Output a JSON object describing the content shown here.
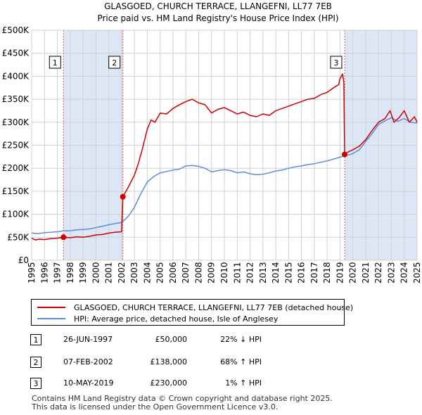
{
  "chart_data": {
    "type": "line",
    "title": "GLASGOED, CHURCH TERRACE, LLANGEFNI, LL77 7EB",
    "subtitle": "Price paid vs. HM Land Registry's House Price Index (HPI)",
    "xlabel": "",
    "ylabel": "",
    "xlim": [
      1995,
      2025
    ],
    "ylim": [
      0,
      500000
    ],
    "x_ticks": [
      "1995",
      "1996",
      "1997",
      "1998",
      "1999",
      "2000",
      "2001",
      "2002",
      "2003",
      "2004",
      "2005",
      "2006",
      "2007",
      "2008",
      "2009",
      "2010",
      "2011",
      "2012",
      "2013",
      "2014",
      "2015",
      "2016",
      "2017",
      "2018",
      "2019",
      "2020",
      "2021",
      "2022",
      "2023",
      "2024",
      "2025"
    ],
    "y_ticks": [
      {
        "value": 0,
        "label": "£0"
      },
      {
        "value": 50000,
        "label": "£50K"
      },
      {
        "value": 100000,
        "label": "£100K"
      },
      {
        "value": 150000,
        "label": "£150K"
      },
      {
        "value": 200000,
        "label": "£200K"
      },
      {
        "value": 250000,
        "label": "£250K"
      },
      {
        "value": 300000,
        "label": "£300K"
      },
      {
        "value": 350000,
        "label": "£350K"
      },
      {
        "value": 400000,
        "label": "£400K"
      },
      {
        "value": 450000,
        "label": "£450K"
      },
      {
        "value": 500000,
        "label": "£500K"
      }
    ],
    "colors": {
      "property": "#cc0000",
      "hpi": "#5b8fd6",
      "shade": "#dde6f5",
      "marker_line": "#e06060",
      "grid": "#d0d0d0"
    },
    "shaded_ranges": [
      [
        1997.48,
        2002.1
      ],
      [
        2019.36,
        2025
      ]
    ],
    "series": [
      {
        "name": "GLASGOED, CHURCH TERRACE, LLANGEFNI, LL77 7EB (detached house)",
        "color": "#cc0000",
        "points": [
          [
            1995.0,
            48000
          ],
          [
            1995.3,
            44000
          ],
          [
            1995.6,
            46000
          ],
          [
            1996.0,
            45000
          ],
          [
            1996.5,
            47000
          ],
          [
            1997.0,
            48000
          ],
          [
            1997.48,
            50000
          ],
          [
            1998.0,
            49000
          ],
          [
            1998.5,
            51000
          ],
          [
            1999.0,
            50000
          ],
          [
            1999.5,
            52000
          ],
          [
            2000.0,
            55000
          ],
          [
            2000.5,
            56000
          ],
          [
            2001.0,
            59000
          ],
          [
            2001.5,
            61000
          ],
          [
            2002.0,
            62000
          ],
          [
            2002.1,
            138000
          ],
          [
            2002.5,
            158000
          ],
          [
            2003.0,
            185000
          ],
          [
            2003.3,
            210000
          ],
          [
            2003.6,
            240000
          ],
          [
            2004.0,
            285000
          ],
          [
            2004.3,
            305000
          ],
          [
            2004.6,
            300000
          ],
          [
            2005.0,
            320000
          ],
          [
            2005.5,
            318000
          ],
          [
            2006.0,
            330000
          ],
          [
            2006.5,
            338000
          ],
          [
            2007.0,
            345000
          ],
          [
            2007.5,
            350000
          ],
          [
            2008.0,
            342000
          ],
          [
            2008.5,
            338000
          ],
          [
            2009.0,
            320000
          ],
          [
            2009.5,
            328000
          ],
          [
            2010.0,
            332000
          ],
          [
            2010.5,
            325000
          ],
          [
            2011.0,
            318000
          ],
          [
            2011.5,
            322000
          ],
          [
            2012.0,
            315000
          ],
          [
            2012.5,
            312000
          ],
          [
            2013.0,
            318000
          ],
          [
            2013.5,
            315000
          ],
          [
            2014.0,
            325000
          ],
          [
            2014.5,
            330000
          ],
          [
            2015.0,
            335000
          ],
          [
            2015.5,
            340000
          ],
          [
            2016.0,
            345000
          ],
          [
            2016.5,
            350000
          ],
          [
            2017.0,
            352000
          ],
          [
            2017.5,
            360000
          ],
          [
            2018.0,
            365000
          ],
          [
            2018.5,
            375000
          ],
          [
            2018.9,
            382000
          ],
          [
            2019.0,
            395000
          ],
          [
            2019.2,
            405000
          ],
          [
            2019.3,
            385000
          ],
          [
            2019.36,
            230000
          ],
          [
            2019.6,
            235000
          ],
          [
            2020.0,
            240000
          ],
          [
            2020.5,
            248000
          ],
          [
            2021.0,
            262000
          ],
          [
            2021.5,
            282000
          ],
          [
            2022.0,
            300000
          ],
          [
            2022.5,
            308000
          ],
          [
            2022.9,
            325000
          ],
          [
            2023.2,
            300000
          ],
          [
            2023.6,
            310000
          ],
          [
            2024.0,
            325000
          ],
          [
            2024.4,
            300000
          ],
          [
            2024.8,
            312000
          ],
          [
            2025.0,
            300000
          ]
        ]
      },
      {
        "name": "HPI: Average price, detached house, Isle of Anglesey",
        "color": "#5b8fd6",
        "points": [
          [
            1995.0,
            59000
          ],
          [
            1995.5,
            58000
          ],
          [
            1996.0,
            60000
          ],
          [
            1996.5,
            61000
          ],
          [
            1997.0,
            62000
          ],
          [
            1997.48,
            64000
          ],
          [
            1998.0,
            64000
          ],
          [
            1998.5,
            66000
          ],
          [
            1999.0,
            67000
          ],
          [
            1999.5,
            68000
          ],
          [
            2000.0,
            71000
          ],
          [
            2000.5,
            74000
          ],
          [
            2001.0,
            77000
          ],
          [
            2001.5,
            80000
          ],
          [
            2002.0,
            82000
          ],
          [
            2002.5,
            95000
          ],
          [
            2003.0,
            115000
          ],
          [
            2003.5,
            145000
          ],
          [
            2004.0,
            170000
          ],
          [
            2004.5,
            182000
          ],
          [
            2005.0,
            190000
          ],
          [
            2005.5,
            193000
          ],
          [
            2006.0,
            196000
          ],
          [
            2006.5,
            198000
          ],
          [
            2007.0,
            205000
          ],
          [
            2007.5,
            206000
          ],
          [
            2008.0,
            204000
          ],
          [
            2008.5,
            200000
          ],
          [
            2009.0,
            192000
          ],
          [
            2009.5,
            195000
          ],
          [
            2010.0,
            197000
          ],
          [
            2010.5,
            195000
          ],
          [
            2011.0,
            190000
          ],
          [
            2011.5,
            192000
          ],
          [
            2012.0,
            188000
          ],
          [
            2012.5,
            186000
          ],
          [
            2013.0,
            187000
          ],
          [
            2013.5,
            190000
          ],
          [
            2014.0,
            194000
          ],
          [
            2014.5,
            196000
          ],
          [
            2015.0,
            200000
          ],
          [
            2015.5,
            203000
          ],
          [
            2016.0,
            205000
          ],
          [
            2016.5,
            208000
          ],
          [
            2017.0,
            210000
          ],
          [
            2017.5,
            213000
          ],
          [
            2018.0,
            216000
          ],
          [
            2018.5,
            220000
          ],
          [
            2019.0,
            224000
          ],
          [
            2019.36,
            227000
          ],
          [
            2019.8,
            230000
          ],
          [
            2020.0,
            232000
          ],
          [
            2020.5,
            240000
          ],
          [
            2021.0,
            258000
          ],
          [
            2021.5,
            275000
          ],
          [
            2022.0,
            295000
          ],
          [
            2022.5,
            303000
          ],
          [
            2023.0,
            310000
          ],
          [
            2023.5,
            302000
          ],
          [
            2024.0,
            308000
          ],
          [
            2024.5,
            300000
          ],
          [
            2025.0,
            298000
          ]
        ]
      }
    ],
    "sale_points": [
      {
        "label": "1",
        "x": 1997.48,
        "y": 50000
      },
      {
        "label": "2",
        "x": 2002.1,
        "y": 138000
      },
      {
        "label": "3",
        "x": 2019.36,
        "y": 230000
      }
    ]
  },
  "legend": {
    "property_label": "GLASGOED, CHURCH TERRACE, LLANGEFNI, LL77 7EB (detached house)",
    "hpi_label": "HPI: Average price, detached house, Isle of Anglesey"
  },
  "sales": [
    {
      "num": "1",
      "date": "26-JUN-1997",
      "price": "£50,000",
      "hpi": "22% ↓ HPI"
    },
    {
      "num": "2",
      "date": "07-FEB-2002",
      "price": "£138,000",
      "hpi": "68% ↑ HPI"
    },
    {
      "num": "3",
      "date": "10-MAY-2019",
      "price": "£230,000",
      "hpi": "1% ↑ HPI"
    }
  ],
  "footer": {
    "line1": "Contains HM Land Registry data © Crown copyright and database right 2025.",
    "line2": "This data is licensed under the Open Government Licence v3.0."
  }
}
